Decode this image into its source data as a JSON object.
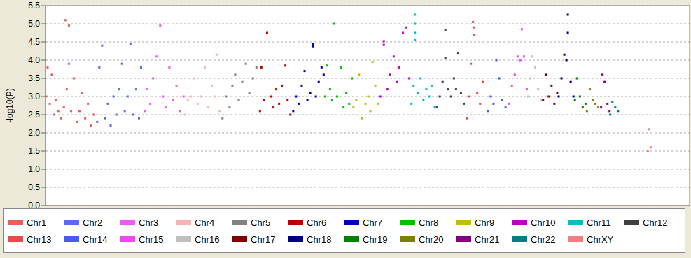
{
  "chart_data": {
    "type": "scatter",
    "y_label": "-log10(P)",
    "xlim": [
      0,
      910
    ],
    "ylim": [
      0,
      5.5
    ],
    "yticks": [
      {
        "value": 0,
        "label": "0.0"
      },
      {
        "value": 0.5,
        "label": "0.5"
      },
      {
        "value": 1,
        "label": "1.0"
      },
      {
        "value": 1.5,
        "label": "1.5"
      },
      {
        "value": 2,
        "label": "2.0"
      },
      {
        "value": 2.5,
        "label": "2.5"
      },
      {
        "value": 3,
        "label": "3.0"
      },
      {
        "value": 3.5,
        "label": "3.5"
      },
      {
        "value": 4,
        "label": "4.0"
      },
      {
        "value": 4.5,
        "label": "4.5"
      },
      {
        "value": 5,
        "label": "5.0"
      },
      {
        "value": 5.5,
        "label": "5.5"
      }
    ],
    "grid": true,
    "tick_labels": "y",
    "legend": "bottom",
    "marker": "square",
    "series": [
      {
        "name": "Chr1",
        "color": "#f05a5a",
        "x": [
          1,
          3,
          6,
          9,
          12,
          15,
          18,
          22,
          26,
          28,
          30,
          33,
          33,
          36,
          40,
          44,
          48,
          52,
          56,
          60,
          64,
          68
        ],
        "values": [
          3.0,
          3.8,
          2.8,
          3.6,
          2.5,
          2.9,
          2.6,
          2.4,
          2.7,
          5.1,
          3.2,
          4.95,
          3.9,
          2.6,
          3.5,
          2.3,
          2.6,
          3.1,
          2.4,
          2.8,
          2.2,
          2.5
        ]
      },
      {
        "name": "Chr2",
        "color": "#5a6af0",
        "x": [
          73,
          76,
          80,
          84,
          88,
          92,
          96,
          100,
          104,
          108,
          112,
          116,
          120,
          124,
          128,
          132,
          135
        ],
        "values": [
          2.3,
          3.8,
          4.4,
          2.4,
          2.8,
          2.2,
          3.0,
          2.5,
          3.2,
          3.9,
          2.6,
          3.0,
          4.45,
          2.5,
          3.2,
          2.4,
          3.8
        ]
      },
      {
        "name": "Chr3",
        "color": "#f05af0",
        "x": [
          140,
          144,
          148,
          152,
          157,
          162,
          166,
          170,
          175,
          180,
          185,
          190,
          195
        ],
        "values": [
          2.6,
          3.2,
          2.8,
          3.5,
          4.1,
          4.95,
          3.0,
          2.7,
          3.8,
          2.9,
          3.3,
          2.6,
          3.0
        ]
      },
      {
        "name": "Chr4",
        "color": "#f8b4b4",
        "x": [
          197,
          201,
          205,
          210,
          215,
          220,
          225,
          230,
          235,
          240,
          242,
          246
        ],
        "values": [
          2.5,
          2.9,
          3.0,
          3.5,
          2.8,
          3.0,
          3.8,
          2.7,
          3.3,
          3.0,
          4.15,
          2.6
        ]
      },
      {
        "name": "Chr5",
        "color": "#828282",
        "x": [
          250,
          255,
          260,
          264,
          268,
          273,
          278,
          283,
          288,
          293,
          298
        ],
        "values": [
          2.4,
          3.0,
          2.7,
          3.3,
          3.6,
          2.9,
          3.4,
          3.9,
          3.1,
          3.5,
          3.8
        ]
      },
      {
        "name": "Chr6",
        "color": "#c00000",
        "x": [
          303,
          305,
          309,
          313,
          318,
          322,
          326,
          330,
          334,
          338,
          342,
          346
        ],
        "values": [
          2.6,
          3.8,
          2.9,
          4.75,
          3.0,
          2.7,
          3.2,
          2.8,
          3.3,
          3.85,
          2.9,
          2.5
        ]
      },
      {
        "name": "Chr7",
        "color": "#0000c0",
        "x": [
          350,
          354,
          358,
          362,
          366,
          370,
          374,
          378,
          378,
          382,
          386,
          390,
          393
        ],
        "values": [
          2.6,
          3.0,
          2.8,
          3.3,
          3.7,
          2.9,
          3.1,
          4.45,
          4.38,
          3.0,
          3.4,
          3.8,
          3.6
        ]
      },
      {
        "name": "Chr8",
        "color": "#00c000",
        "x": [
          395,
          398,
          402,
          405,
          408,
          412,
          417,
          421,
          425,
          429,
          433
        ],
        "values": [
          3.0,
          3.85,
          3.2,
          2.9,
          5.0,
          3.0,
          3.8,
          2.7,
          3.1,
          2.8,
          3.5
        ]
      },
      {
        "name": "Chr9",
        "color": "#c0c000",
        "x": [
          435,
          439,
          443,
          447,
          452,
          456,
          459,
          462,
          466,
          470
        ],
        "values": [
          2.7,
          2.9,
          3.6,
          2.4,
          2.8,
          3.0,
          2.6,
          3.95,
          3.3,
          2.8
        ]
      },
      {
        "name": "Chr10",
        "color": "#c000c0",
        "x": [
          473,
          478,
          478,
          483,
          487,
          492,
          496,
          500,
          505,
          510,
          514
        ],
        "values": [
          3.0,
          4.52,
          4.42,
          3.2,
          3.6,
          4.1,
          3.4,
          3.8,
          4.75,
          4.9,
          3.5
        ]
      },
      {
        "name": "Chr11",
        "color": "#00c0c0",
        "x": [
          517,
          520,
          522,
          522,
          522,
          522,
          526,
          530,
          534,
          538,
          542,
          546,
          550
        ],
        "values": [
          2.8,
          3.3,
          5.25,
          5.0,
          4.75,
          4.55,
          3.1,
          3.5,
          2.9,
          3.2,
          3.0,
          3.3,
          2.7
        ]
      },
      {
        "name": "Chr12",
        "color": "#404040",
        "x": [
          553,
          557,
          561,
          565,
          565,
          569,
          573,
          577,
          580,
          583,
          587,
          591
        ],
        "values": [
          2.7,
          3.0,
          3.4,
          4.82,
          4.05,
          3.2,
          3.0,
          3.5,
          3.2,
          4.2,
          3.1,
          2.8
        ]
      },
      {
        "name": "Chr13",
        "color": "#f04848",
        "x": [
          595,
          598,
          601,
          604,
          605,
          606,
          610,
          614,
          618
        ],
        "values": [
          2.4,
          3.0,
          3.9,
          5.05,
          4.9,
          4.7,
          3.1,
          2.8,
          3.4
        ]
      },
      {
        "name": "Chr14",
        "color": "#4a5af0",
        "x": [
          625,
          629,
          633,
          637,
          641,
          645,
          650
        ],
        "values": [
          2.6,
          3.0,
          2.8,
          4.0,
          3.5,
          2.9,
          2.7
        ]
      },
      {
        "name": "Chr15",
        "color": "#f048f0",
        "x": [
          655,
          659,
          663,
          667,
          671,
          673,
          676,
          680
        ],
        "values": [
          2.8,
          3.3,
          3.6,
          4.1,
          4.0,
          4.85,
          4.1,
          3.2
        ]
      },
      {
        "name": "Chr16",
        "color": "#c0c0c0",
        "x": [
          682,
          685,
          688,
          692,
          696,
          700
        ],
        "values": [
          3.0,
          3.5,
          4.1,
          3.8,
          3.2,
          2.9
        ]
      },
      {
        "name": "Chr17",
        "color": "#800000",
        "x": [
          703,
          707,
          711,
          715,
          719,
          723
        ],
        "values": [
          2.9,
          3.6,
          3.0,
          3.3,
          2.8,
          3.1
        ]
      },
      {
        "name": "Chr18",
        "color": "#000080",
        "x": [
          725,
          729,
          733,
          736,
          738,
          738,
          742,
          746
        ],
        "values": [
          3.0,
          3.5,
          4.15,
          4.0,
          5.25,
          4.75,
          3.4,
          3.0
        ]
      },
      {
        "name": "Chr19",
        "color": "#008000",
        "x": [
          748,
          751,
          755,
          759,
          763
        ],
        "values": [
          2.9,
          3.5,
          3.0,
          2.7,
          2.8
        ]
      },
      {
        "name": "Chr20",
        "color": "#808000",
        "x": [
          765,
          769,
          773,
          777,
          781
        ],
        "values": [
          2.6,
          3.2,
          2.9,
          2.8,
          2.7
        ]
      },
      {
        "name": "Chr21",
        "color": "#800080",
        "x": [
          785,
          787,
          790,
          794,
          797
        ],
        "values": [
          2.7,
          3.6,
          3.4,
          2.8,
          2.6
        ]
      },
      {
        "name": "Chr22",
        "color": "#008080",
        "x": [
          798,
          801,
          805,
          809
        ],
        "values": [
          2.5,
          2.85,
          2.7,
          2.6
        ]
      },
      {
        "name": "ChrXY",
        "color": "#f08080",
        "x": [
          851,
          853,
          855
        ],
        "values": [
          1.5,
          2.1,
          1.6
        ]
      }
    ]
  }
}
